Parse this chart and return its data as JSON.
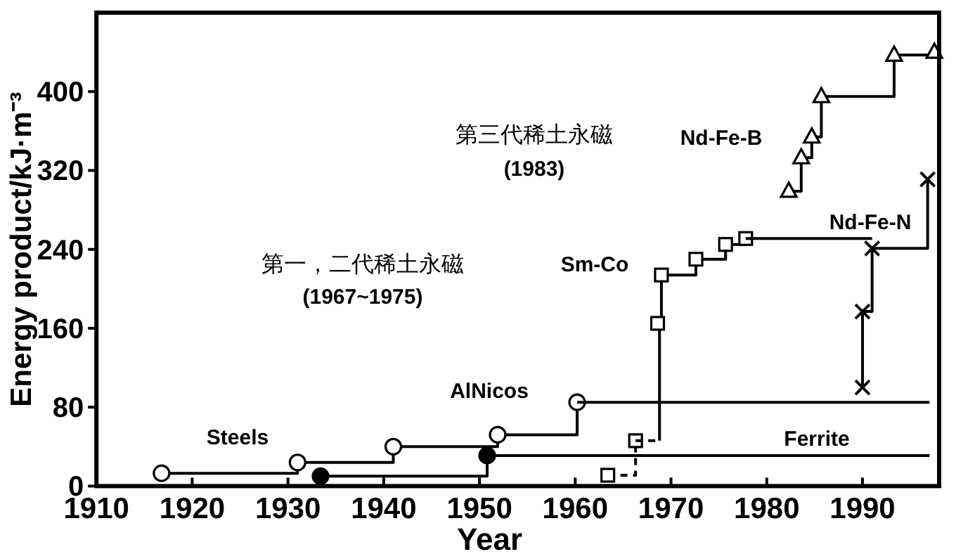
{
  "chart_data": {
    "type": "step",
    "xlabel": "Year",
    "ylabel": "Energy product/kJ·m⁻³",
    "xlim": [
      1910,
      1998
    ],
    "xticks": [
      1910,
      1920,
      1930,
      1940,
      1950,
      1960,
      1970,
      1980,
      1990
    ],
    "ylim": [
      0,
      480
    ],
    "yticks": [
      0,
      80,
      160,
      240,
      320,
      400
    ],
    "series": [
      {
        "color": "#000000",
        "marker": "circle",
        "x": [
          1916.8,
          1931,
          1941,
          1951.9,
          1960.2
        ],
        "values": [
          13,
          24,
          40,
          52,
          85
        ]
      },
      {
        "type": "line",
        "color": "#000000",
        "marker": "none",
        "x": [
          1960.2,
          1997
        ],
        "values": [
          85,
          85
        ]
      },
      {
        "color": "#000000",
        "colors": [
          "#000000",
          "#000000"
        ],
        "marker": "circle",
        "x": [
          1933.4,
          1950.8
        ],
        "values": [
          10,
          31
        ]
      },
      {
        "type": "line",
        "color": "#000000",
        "marker": "none",
        "x": [
          1950.8,
          1997
        ],
        "values": [
          31,
          31
        ]
      },
      {
        "color": "#000000",
        "marker": "square",
        "line_style": "dashed",
        "x": [
          1963.4,
          1966.3
        ],
        "values": [
          11,
          46
        ]
      },
      {
        "type": "line",
        "color": "#000000",
        "marker": "none",
        "line_style": "dashed",
        "x": [
          1966.3,
          1968.8
        ],
        "values": [
          46,
          46
        ]
      },
      {
        "type": "line",
        "color": "#000000",
        "marker": "none",
        "x": [
          1968.8,
          1968.8
        ],
        "values": [
          46,
          165
        ]
      },
      {
        "color": "#000000",
        "marker": "square",
        "x": [
          1968.6,
          1969,
          1972.6,
          1975.7,
          1977.8
        ],
        "values": [
          165,
          214,
          230,
          245,
          251
        ]
      },
      {
        "type": "line",
        "color": "#000000",
        "marker": "none",
        "x": [
          1977.8,
          1991
        ],
        "values": [
          251,
          251
        ]
      },
      {
        "color": "#000000",
        "marker": "triangle",
        "x": [
          1982.3,
          1983.6,
          1984.7,
          1985.7,
          1993.3,
          1997.5
        ],
        "values": [
          299,
          333,
          354,
          395,
          437,
          440
        ]
      },
      {
        "color": "#000000",
        "marker": "cross",
        "x": [
          1990,
          1990,
          1991,
          1996.8
        ],
        "values": [
          100,
          177,
          241,
          311
        ]
      }
    ],
    "annotations": [
      "Steels",
      "AlNicos",
      "Ferrite",
      "Sm-Co",
      "Nd-Fe-B",
      "Nd-Fe-N",
      "第一，二代稀土永磁",
      "(1967~1975)",
      "第三代稀土永磁",
      "(1983)"
    ]
  }
}
